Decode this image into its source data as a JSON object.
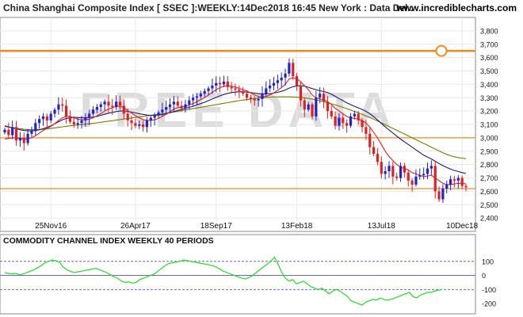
{
  "header": {
    "title": "China Shanghai Composite Index [ SSEC ]:WEEKLY:14Dec2018 16:45 New York : Data Del..",
    "site": "www.incrediblecharts.com"
  },
  "watermark": "FREE DATA",
  "colors": {
    "up": "#2222cc",
    "down": "#e02020",
    "ma_short": "#e02020",
    "ma_mid": "#1a1a7a",
    "ma_long": "#7a7a00",
    "level": "#f58a1a",
    "cci": "#22dd22",
    "cci_ref": "#6666cc"
  },
  "chart_data": [
    {
      "type": "candlestick",
      "title": "China Shanghai Composite Index [ SSEC ]:WEEKLY",
      "ylim": [
        2300,
        3900
      ],
      "yticks": [
        2400,
        2500,
        2600,
        2700,
        2800,
        2900,
        3000,
        3100,
        3200,
        3300,
        3400,
        3500,
        3600,
        3700,
        3800
      ],
      "ytick_labels": [
        "2,400",
        "2,500",
        "2,600",
        "2,700",
        "2,800",
        "2,900",
        "3,000",
        "3,100",
        "3,200",
        "3,300",
        "3,400",
        "3,500",
        "3,600",
        "3,700",
        "3,800"
      ],
      "x_labels": [
        "25Nov16",
        "26Apr17",
        "18Sep17",
        "13Feb18",
        "13Jul18",
        "10Dec18"
      ],
      "x_label_index": [
        12,
        34,
        55,
        76,
        98,
        119
      ],
      "horizontal_levels": [
        3650,
        3000,
        2620
      ],
      "marker_value": 3650,
      "close": [
        3060,
        3020,
        3080,
        2980,
        3000,
        2960,
        3030,
        3050,
        3110,
        3140,
        3160,
        3130,
        3180,
        3210,
        3250,
        3240,
        3160,
        3120,
        3100,
        3110,
        3130,
        3150,
        3180,
        3210,
        3230,
        3250,
        3270,
        3240,
        3230,
        3270,
        3240,
        3180,
        3130,
        3110,
        3090,
        3100,
        3080,
        3130,
        3150,
        3170,
        3190,
        3210,
        3230,
        3250,
        3270,
        3240,
        3220,
        3250,
        3280,
        3300,
        3310,
        3330,
        3350,
        3370,
        3390,
        3410,
        3400,
        3420,
        3380,
        3370,
        3360,
        3350,
        3330,
        3300,
        3290,
        3280,
        3290,
        3330,
        3370,
        3390,
        3410,
        3430,
        3450,
        3480,
        3560,
        3460,
        3390,
        3280,
        3210,
        3250,
        3160,
        3300,
        3330,
        3270,
        3200,
        3160,
        3090,
        3150,
        3110,
        3090,
        3160,
        3180,
        3130,
        3080,
        3030,
        2930,
        2880,
        2820,
        2730,
        2750,
        2790,
        2710,
        2700,
        2790,
        2740,
        2680,
        2650,
        2710,
        2720,
        2730,
        2770,
        2790,
        2600,
        2540,
        2620,
        2650,
        2690,
        2680,
        2700,
        2640,
        2630
      ],
      "ma_short": [
        2990,
        2995,
        3000,
        2998,
        2995,
        2990,
        2992,
        3000,
        3015,
        3035,
        3055,
        3070,
        3085,
        3105,
        3130,
        3150,
        3160,
        3160,
        3150,
        3140,
        3135,
        3135,
        3140,
        3150,
        3165,
        3180,
        3200,
        3215,
        3225,
        3235,
        3235,
        3225,
        3205,
        3185,
        3165,
        3150,
        3135,
        3130,
        3130,
        3135,
        3145,
        3160,
        3175,
        3195,
        3215,
        3225,
        3230,
        3235,
        3245,
        3255,
        3270,
        3285,
        3300,
        3320,
        3340,
        3360,
        3375,
        3385,
        3390,
        3385,
        3380,
        3370,
        3360,
        3350,
        3335,
        3320,
        3310,
        3305,
        3310,
        3320,
        3335,
        3355,
        3375,
        3400,
        3440,
        3450,
        3440,
        3420,
        3390,
        3360,
        3320,
        3300,
        3290,
        3285,
        3270,
        3250,
        3220,
        3200,
        3180,
        3160,
        3150,
        3145,
        3140,
        3130,
        3110,
        3080,
        3040,
        3000,
        2950,
        2900,
        2860,
        2830,
        2800,
        2780,
        2770,
        2760,
        2740,
        2730,
        2720,
        2710,
        2715,
        2720,
        2700,
        2680,
        2660,
        2650,
        2650,
        2655,
        2660,
        2660,
        2655
      ],
      "ma_mid": [
        3090,
        3082,
        3075,
        3068,
        3060,
        3055,
        3052,
        3052,
        3055,
        3060,
        3068,
        3078,
        3090,
        3105,
        3120,
        3135,
        3145,
        3150,
        3152,
        3152,
        3150,
        3150,
        3152,
        3155,
        3160,
        3168,
        3176,
        3184,
        3190,
        3196,
        3200,
        3200,
        3198,
        3192,
        3186,
        3180,
        3175,
        3170,
        3168,
        3168,
        3170,
        3174,
        3180,
        3188,
        3196,
        3204,
        3212,
        3220,
        3228,
        3236,
        3246,
        3256,
        3266,
        3278,
        3290,
        3302,
        3314,
        3324,
        3332,
        3338,
        3342,
        3344,
        3344,
        3342,
        3338,
        3334,
        3330,
        3328,
        3328,
        3330,
        3334,
        3340,
        3348,
        3358,
        3372,
        3382,
        3388,
        3390,
        3386,
        3378,
        3368,
        3360,
        3352,
        3346,
        3338,
        3326,
        3310,
        3294,
        3278,
        3262,
        3248,
        3236,
        3224,
        3212,
        3198,
        3180,
        3158,
        3134,
        3108,
        3082,
        3058,
        3036,
        3012,
        2990,
        2970,
        2950,
        2930,
        2910,
        2890,
        2870,
        2855,
        2842,
        2825,
        2808,
        2792,
        2778,
        2766,
        2756,
        2748,
        2740,
        2733
      ],
      "ma_long": [
        3085,
        3080,
        3076,
        3072,
        3068,
        3064,
        3062,
        3061,
        3061,
        3062,
        3064,
        3067,
        3070,
        3074,
        3078,
        3082,
        3086,
        3090,
        3093,
        3096,
        3099,
        3102,
        3105,
        3108,
        3112,
        3116,
        3120,
        3124,
        3128,
        3132,
        3136,
        3140,
        3144,
        3148,
        3152,
        3156,
        3160,
        3164,
        3168,
        3172,
        3176,
        3180,
        3184,
        3188,
        3193,
        3198,
        3203,
        3208,
        3213,
        3218,
        3223,
        3228,
        3233,
        3238,
        3243,
        3248,
        3253,
        3258,
        3263,
        3268,
        3273,
        3278,
        3282,
        3286,
        3290,
        3294,
        3297,
        3300,
        3302,
        3304,
        3305,
        3306,
        3306,
        3306,
        3306,
        3305,
        3304,
        3302,
        3299,
        3295,
        3290,
        3284,
        3277,
        3270,
        3262,
        3254,
        3246,
        3237,
        3228,
        3218,
        3208,
        3198,
        3187,
        3176,
        3164,
        3152,
        3139,
        3126,
        3112,
        3098,
        3084,
        3070,
        3056,
        3042,
        3028,
        3014,
        3000,
        2986,
        2972,
        2958,
        2944,
        2930,
        2916,
        2902,
        2888,
        2876,
        2866,
        2858,
        2852,
        2848,
        2844
      ]
    },
    {
      "type": "line",
      "title": "COMMODITY CHANNEL INDEX WEEKLY 40 PERIODS",
      "ylim": [
        -250,
        200
      ],
      "yticks": [
        100,
        0,
        -100,
        -200
      ],
      "ytick_labels": [
        "100",
        "0",
        "-100",
        "-200"
      ],
      "reference_lines": [
        100,
        0,
        -100
      ],
      "values": [
        20,
        15,
        10,
        15,
        5,
        10,
        20,
        30,
        40,
        55,
        70,
        90,
        100,
        110,
        105,
        95,
        60,
        40,
        30,
        20,
        25,
        30,
        35,
        40,
        45,
        50,
        40,
        30,
        20,
        5,
        -10,
        -20,
        -40,
        -50,
        -45,
        -55,
        -50,
        -30,
        -20,
        -10,
        0,
        10,
        30,
        50,
        70,
        85,
        90,
        95,
        100,
        110,
        105,
        100,
        95,
        90,
        85,
        80,
        75,
        70,
        60,
        45,
        30,
        20,
        10,
        0,
        -10,
        -20,
        -25,
        -15,
        0,
        20,
        40,
        60,
        80,
        100,
        130,
        80,
        20,
        -20,
        -40,
        -30,
        -60,
        -50,
        -40,
        -60,
        -80,
        -90,
        -100,
        -90,
        -110,
        -130,
        -110,
        -100,
        -110,
        -130,
        -150,
        -180,
        -190,
        -200,
        -210,
        -190,
        -180,
        -170,
        -175,
        -160,
        -170,
        -175,
        -170,
        -160,
        -150,
        -140,
        -130,
        -120,
        -150,
        -160,
        -140,
        -130,
        -120,
        -120,
        -110,
        -105,
        -100
      ]
    }
  ]
}
